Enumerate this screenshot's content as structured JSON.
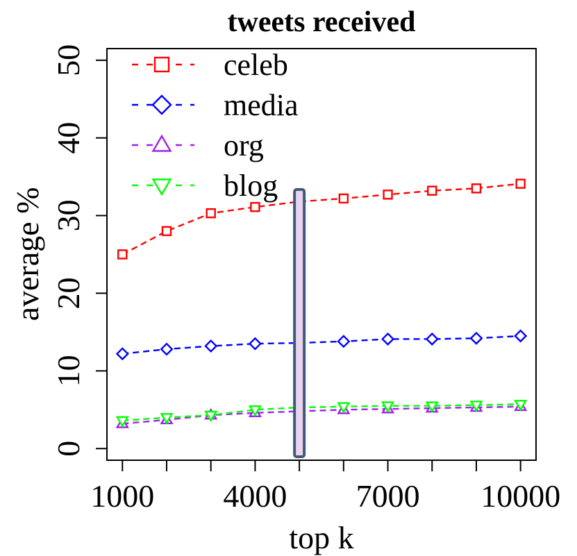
{
  "chart_data": {
    "type": "line",
    "title": "tweets received",
    "xlabel": "top k",
    "ylabel": "average %",
    "x": [
      1000,
      2000,
      3000,
      4000,
      5000,
      6000,
      7000,
      8000,
      9000,
      10000
    ],
    "xticks": [
      1000,
      2000,
      3000,
      4000,
      5000,
      6000,
      7000,
      8000,
      9000,
      10000
    ],
    "xtick_labels": [
      "1000",
      "",
      "",
      "4000",
      "",
      "",
      "7000",
      "",
      "",
      "10000"
    ],
    "yticks": [
      0,
      10,
      20,
      30,
      40,
      50
    ],
    "ytick_labels": [
      "0",
      "10",
      "20",
      "30",
      "40",
      "50"
    ],
    "xlim": [
      650,
      10350
    ],
    "ylim": [
      -1.5,
      51.5
    ],
    "grid": false,
    "legend_position": "top-left",
    "series": [
      {
        "name": "celeb",
        "color": "#ff0000",
        "marker": "square",
        "values": [
          25.0,
          28.0,
          30.3,
          31.1,
          31.8,
          32.2,
          32.7,
          33.2,
          33.5,
          34.1
        ]
      },
      {
        "name": "media",
        "color": "#0000ff",
        "marker": "diamond",
        "values": [
          12.2,
          12.8,
          13.2,
          13.5,
          13.6,
          13.8,
          14.1,
          14.1,
          14.2,
          14.5
        ]
      },
      {
        "name": "org",
        "color": "#a020f0",
        "marker": "triangle-up",
        "values": [
          3.2,
          3.7,
          4.3,
          4.6,
          4.8,
          5.0,
          5.1,
          5.2,
          5.3,
          5.4
        ]
      },
      {
        "name": "blog",
        "color": "#00ff00",
        "marker": "triangle-down",
        "values": [
          3.6,
          4.0,
          4.3,
          5.0,
          5.3,
          5.4,
          5.5,
          5.5,
          5.6,
          5.7
        ]
      }
    ],
    "highlight": {
      "x": 5000,
      "fill": "#e9d3ee",
      "stroke": "#3f5978"
    }
  }
}
